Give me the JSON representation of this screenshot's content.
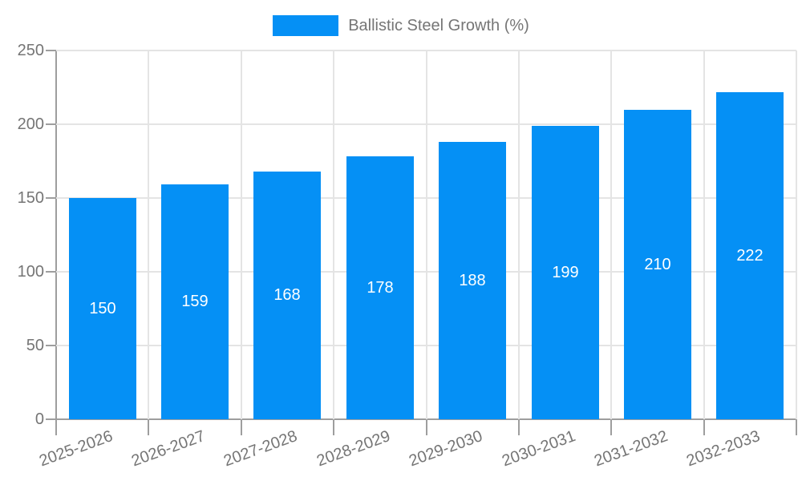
{
  "chart_data": {
    "type": "bar",
    "title": "",
    "xlabel": "",
    "ylabel": "",
    "legend_label": "Ballistic Steel Growth (%)",
    "legend_position": "top",
    "grid": true,
    "categories": [
      "2025-2026",
      "2026-2027",
      "2027-2028",
      "2028-2029",
      "2029-2030",
      "2030-2031",
      "2031-2032",
      "2032-2033"
    ],
    "values": [
      150,
      159,
      168,
      178,
      188,
      199,
      210,
      222
    ],
    "ylim": [
      0,
      250
    ],
    "yticks": [
      0,
      50,
      100,
      150,
      200,
      250
    ],
    "colors": {
      "bar": "#0590f5",
      "axis_line": "#9e9e9e",
      "gridline": "#e4e4e4",
      "tick_text": "#757575",
      "legend_text": "#757575",
      "value_label": "#ffffff",
      "background": "#ffffff"
    }
  }
}
